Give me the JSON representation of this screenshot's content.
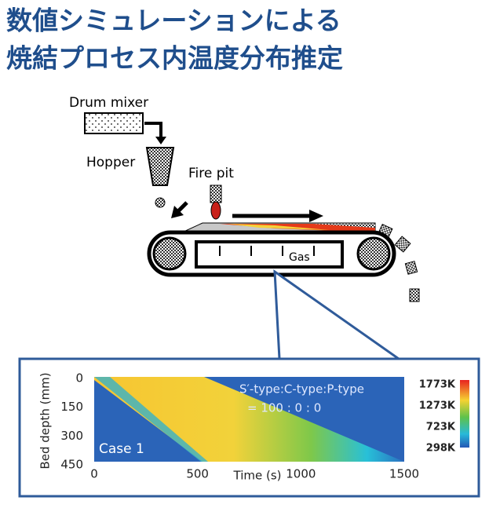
{
  "header": {
    "title_lines": [
      "数値シミュレーションによる",
      "焼結プロセス内温度分布推定"
    ]
  },
  "diagram": {
    "drum_mixer": "Drum mixer",
    "hopper": "Hopper",
    "fire_pit": "Fire pit",
    "gas": "Gas"
  },
  "inset": {
    "y_label": "Bed depth (mm)",
    "x_label": "Time (s)",
    "yticks": [
      0,
      150,
      300,
      450
    ],
    "xticks": [
      0,
      500,
      1000,
      1500
    ],
    "ratio_label": "S′-type:C-type:P-type",
    "ratio_values": "=  100   :   0   :   0",
    "case_label": "Case 1",
    "colorbar_labels": [
      "1773K",
      "1273K",
      "723K",
      "298K"
    ]
  }
}
